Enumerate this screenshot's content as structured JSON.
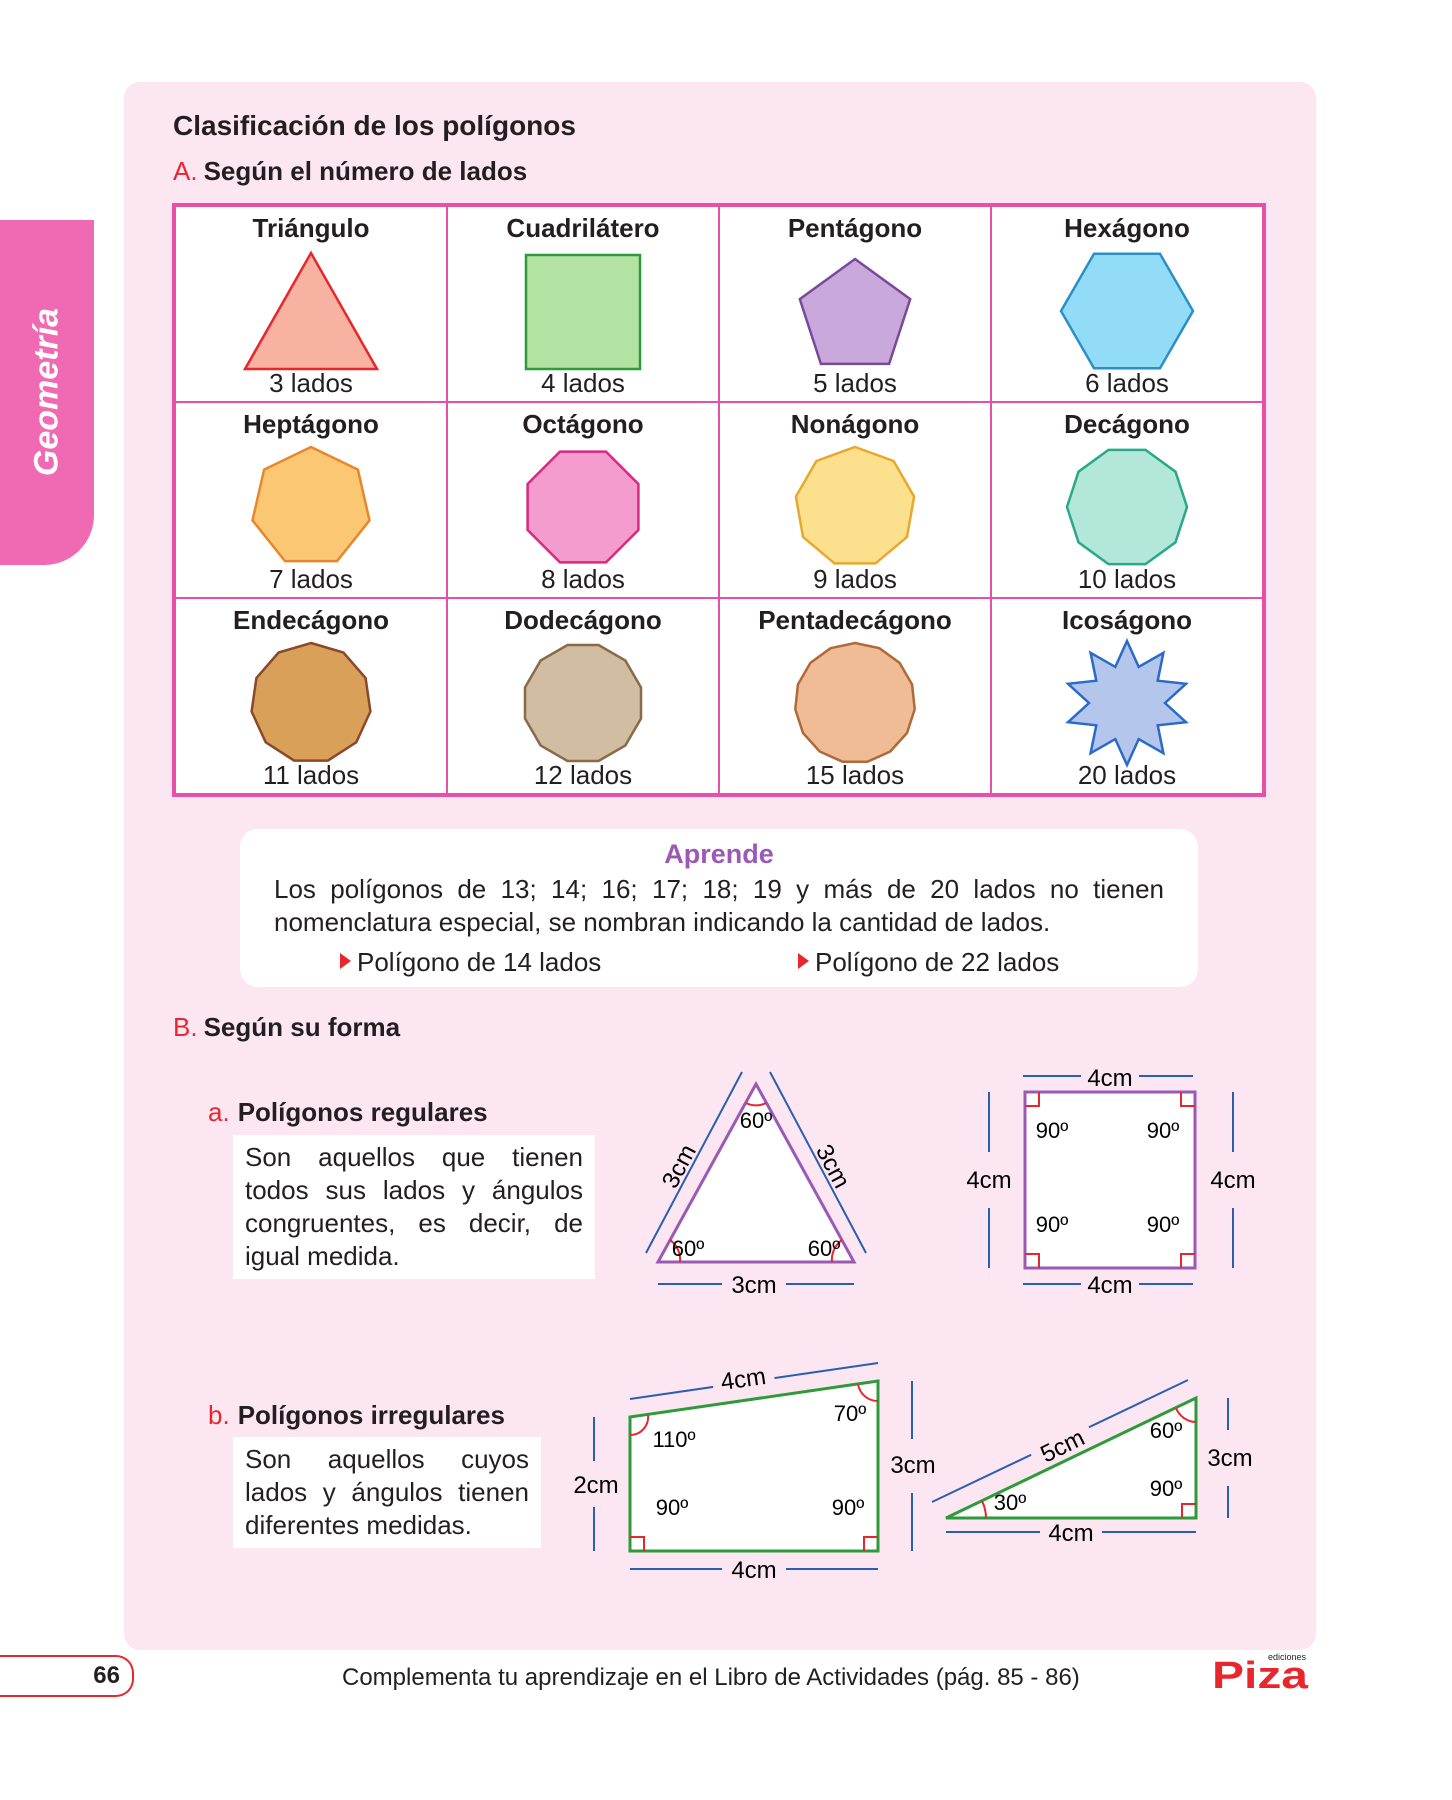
{
  "sidebar": {
    "label": "Geometría"
  },
  "title": "Clasificación de los polígonos",
  "section_a": {
    "letter": "A.",
    "label": "Según el número de lados"
  },
  "polygons": [
    {
      "name": "Triángulo",
      "sides": "3 lados",
      "n": 3,
      "fill": "#f7b2a2",
      "stroke": "#e8262e"
    },
    {
      "name": "Cuadrilátero",
      "sides": "4 lados",
      "n": 4,
      "fill": "#b3e3a2",
      "stroke": "#2e9a3a"
    },
    {
      "name": "Pentágono",
      "sides": "5 lados",
      "n": 5,
      "fill": "#c9a8dc",
      "stroke": "#7a4a9a"
    },
    {
      "name": "Hexágono",
      "sides": "6 lados",
      "n": 6,
      "fill": "#92dcf7",
      "stroke": "#2a8fc9"
    },
    {
      "name": "Heptágono",
      "sides": "7 lados",
      "n": 7,
      "fill": "#fbc773",
      "stroke": "#e8862e"
    },
    {
      "name": "Octágono",
      "sides": "8 lados",
      "n": 8,
      "fill": "#f49ccd",
      "stroke": "#d6297f"
    },
    {
      "name": "Nonágono",
      "sides": "9 lados",
      "n": 9,
      "fill": "#fde08e",
      "stroke": "#e8a82e"
    },
    {
      "name": "Decágono",
      "sides": "10 lados",
      "n": 10,
      "fill": "#b3e7d9",
      "stroke": "#2aa88a"
    },
    {
      "name": "Endecágono",
      "sides": "11 lados",
      "n": 11,
      "fill": "#d9a05a",
      "stroke": "#8a4a2a"
    },
    {
      "name": "Dodecágono",
      "sides": "12 lados",
      "n": 12,
      "fill": "#d1bea2",
      "stroke": "#8a6a4a"
    },
    {
      "name": "Pentadecágono",
      "sides": "15 lados",
      "n": 15,
      "fill": "#efbc96",
      "stroke": "#b06a3a"
    },
    {
      "name": "Icoságono",
      "sides": "20 lados",
      "n": 20,
      "fill": "#b4c6ec",
      "stroke": "#2a6ac9"
    }
  ],
  "aprende": {
    "title": "Aprende",
    "line1": "Los polígonos de 13; 14; 16; 17; 18; 19 y más de 20 lados no tienen",
    "line2": "nomenclatura especial, se nombran indicando la cantidad de lados.",
    "example1": "Polígono de 14 lados",
    "example2": "Polígono de 22 lados"
  },
  "section_b": {
    "letter": "B.",
    "label": "Según su forma"
  },
  "regulares": {
    "letter": "a.",
    "label": "Polígonos regulares",
    "lines": [
      "Son aquellos que tienen",
      "todos sus lados y ángulos",
      "congruentes, es decir, de",
      "igual medida."
    ]
  },
  "irregulares": {
    "letter": "b.",
    "label": "Polígonos irregulares",
    "lines": [
      "Son aquellos cuyos",
      "lados y ángulos tienen",
      "diferentes medidas."
    ]
  },
  "figures": {
    "triangle": {
      "side_left": "3cm",
      "side_right": "3cm",
      "side_bottom": "3cm",
      "angle_top": "60º",
      "angle_left": "60º",
      "angle_right": "60º"
    },
    "square": {
      "top": "4cm",
      "bottom": "4cm",
      "left": "4cm",
      "right": "4cm",
      "angle": "90º"
    },
    "trapezoid": {
      "top": "4cm",
      "left": "2cm",
      "right": "3cm",
      "bottom": "4cm",
      "angle_tl": "110º",
      "angle_tr": "70º",
      "angle_bl": "90º",
      "angle_br": "90º"
    },
    "right_triangle": {
      "hyp": "5cm",
      "right": "3cm",
      "bottom": "4cm",
      "angle_top": "60º",
      "angle_left": "30º",
      "angle_right": "90º"
    }
  },
  "footer": {
    "page_number": "66",
    "text": "Complementa tu aprendizaje en el Libro de Actividades (pág. 85 - 86)",
    "logo_small": "ediciones",
    "logo": "Piza"
  },
  "colors": {
    "accent_pink": "#ef69b3",
    "accent_red": "#e8262e",
    "panel": "#fce6f2",
    "dimension_blue": "#2a5fb0"
  }
}
